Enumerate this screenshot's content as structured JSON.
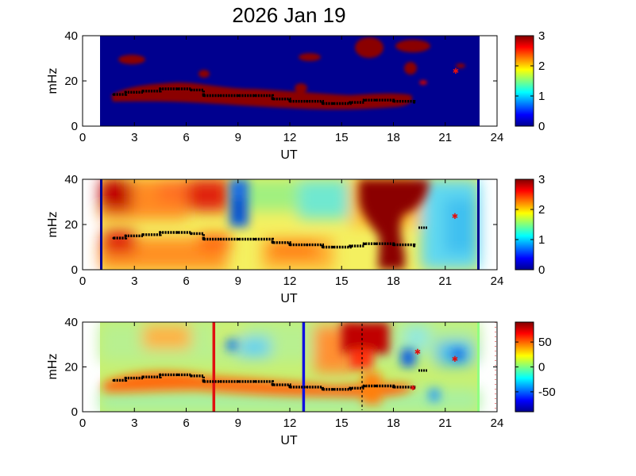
{
  "title": "2026 Jan 19",
  "colors": {
    "background": "#ffffff",
    "axis": "#000000",
    "ridge": "#000000",
    "red_marker": "#e01010",
    "blue_marker": "#1010e0"
  },
  "chart_data": [
    {
      "type": "heatmap",
      "panel": 1,
      "xlabel": "UT",
      "ylabel": "mHz",
      "xlim": [
        0,
        24
      ],
      "ylim": [
        0,
        40
      ],
      "xticks": [
        0,
        3,
        6,
        9,
        12,
        15,
        18,
        21,
        24
      ],
      "yticks": [
        0,
        20,
        40
      ],
      "data_extent_x": [
        1,
        23
      ],
      "colorbar": {
        "range": [
          0,
          3
        ],
        "ticks": [
          0,
          1,
          2,
          3
        ],
        "colormap": "jet"
      },
      "ridge_line": {
        "x": [
          1.8,
          2.5,
          3.5,
          4.5,
          5.5,
          6.3,
          7.0,
          8.0,
          9.0,
          10.0,
          11.0,
          12.0,
          13.0,
          13.9,
          14.5,
          15.5,
          16.3,
          17.0,
          18.0,
          19.2
        ],
        "y": [
          14,
          15,
          15.5,
          16.5,
          16.5,
          16,
          13.5,
          13.5,
          13.5,
          13.5,
          12,
          11,
          11,
          10,
          10,
          10.5,
          11.5,
          11.5,
          11,
          10.5
        ]
      }
    },
    {
      "type": "heatmap",
      "panel": 2,
      "xlabel": "UT",
      "ylabel": "mHz",
      "xlim": [
        0,
        24
      ],
      "ylim": [
        0,
        40
      ],
      "xticks": [
        0,
        3,
        6,
        9,
        12,
        15,
        18,
        21,
        24
      ],
      "yticks": [
        0,
        20,
        40
      ],
      "data_extent_x": [
        1,
        23
      ],
      "colorbar": {
        "range": [
          0,
          3
        ],
        "ticks": [
          0,
          1,
          2,
          3
        ],
        "colormap": "jet"
      },
      "ridge_line": {
        "x": [
          1.8,
          2.5,
          3.5,
          4.5,
          5.5,
          6.3,
          7.0,
          8.0,
          9.0,
          10.0,
          11.0,
          12.0,
          13.0,
          13.9,
          14.5,
          15.5,
          16.3,
          17.0,
          18.0,
          19.2
        ],
        "y": [
          14,
          15,
          15.5,
          16.5,
          16.5,
          16,
          13.5,
          13.5,
          13.5,
          13.5,
          12,
          11,
          11,
          10,
          10,
          10.5,
          11.5,
          11.5,
          11,
          10.5
        ]
      }
    },
    {
      "type": "heatmap",
      "panel": 3,
      "xlabel": "UT",
      "ylabel": "mHz",
      "xlim": [
        0,
        24
      ],
      "ylim": [
        0,
        40
      ],
      "xticks": [
        0,
        3,
        6,
        9,
        12,
        15,
        18,
        21,
        24
      ],
      "yticks": [
        0,
        20,
        40
      ],
      "data_extent_x": [
        1,
        23
      ],
      "colorbar": {
        "range": [
          -90,
          90
        ],
        "ticks": [
          50,
          0,
          -50
        ],
        "colormap": "jet"
      },
      "vertical_markers": [
        {
          "x": 7.6,
          "color": "red"
        },
        {
          "x": 12.8,
          "color": "blue"
        }
      ],
      "ridge_line": {
        "x": [
          1.8,
          2.5,
          3.5,
          4.5,
          5.5,
          6.3,
          7.0,
          8.0,
          9.0,
          10.0,
          11.0,
          12.0,
          13.0,
          13.9,
          14.5,
          15.5,
          16.3,
          17.0,
          18.0,
          19.2
        ],
        "y": [
          14,
          15,
          15.5,
          16.5,
          16.5,
          16,
          13.5,
          13.5,
          13.5,
          13.5,
          12,
          11,
          11,
          10,
          10,
          10.5,
          11.5,
          11.5,
          11,
          10.5
        ]
      }
    }
  ]
}
